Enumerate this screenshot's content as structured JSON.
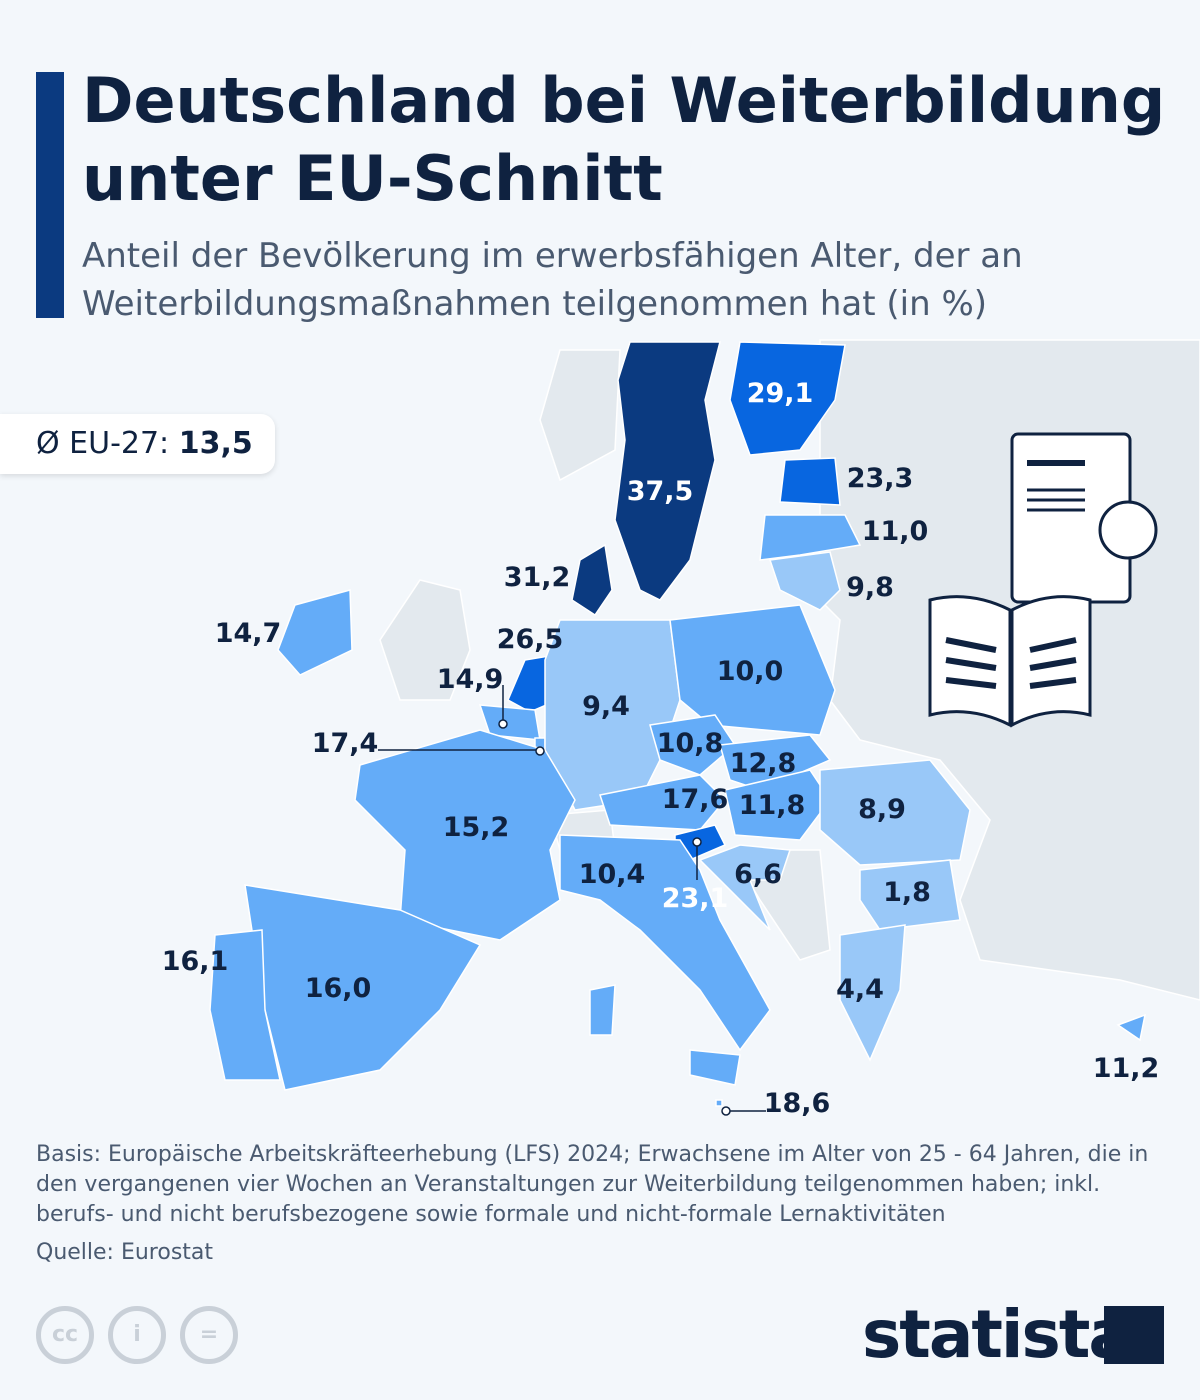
{
  "title": "Deutschland bei Weiterbildung unter EU-Schnitt",
  "subtitle": "Anteil der Bevölkerung im erwerbsfähigen Alter, der an Weiterbildungsmaßnahmen teilgenommen hat (in %)",
  "average": {
    "label": "Ø EU-27:",
    "value": "13,5"
  },
  "colors": {
    "darkest": "#0b3a80",
    "dark": "#0866e0",
    "mid": "#64acf8",
    "light": "#99c8f8",
    "nonEU": "#e3e9ee"
  },
  "countries": [
    {
      "name": "Schweden",
      "value": "37,5"
    },
    {
      "name": "Finnland",
      "value": "29,1"
    },
    {
      "name": "Estland",
      "value": "23,3"
    },
    {
      "name": "Lettland",
      "value": "11,0"
    },
    {
      "name": "Litauen",
      "value": "9,8"
    },
    {
      "name": "Dänemark",
      "value": "31,2"
    },
    {
      "name": "Irland",
      "value": "14,7"
    },
    {
      "name": "Niederlande",
      "value": "26,5"
    },
    {
      "name": "Belgien",
      "value": "14,9"
    },
    {
      "name": "Luxemburg",
      "value": "17,4"
    },
    {
      "name": "Deutschland",
      "value": "9,4"
    },
    {
      "name": "Polen",
      "value": "10,0"
    },
    {
      "name": "Tschechien",
      "value": "10,8"
    },
    {
      "name": "Slowakei",
      "value": "12,8"
    },
    {
      "name": "Österreich",
      "value": "17,6"
    },
    {
      "name": "Ungarn",
      "value": "11,8"
    },
    {
      "name": "Slowenien",
      "value": "23,1"
    },
    {
      "name": "Kroatien",
      "value": "6,6"
    },
    {
      "name": "Rumänien",
      "value": "8,9"
    },
    {
      "name": "Bulgarien",
      "value": "1,8"
    },
    {
      "name": "Griechenland",
      "value": "4,4"
    },
    {
      "name": "Zypern",
      "value": "11,2"
    },
    {
      "name": "Malta",
      "value": "18,6"
    },
    {
      "name": "Italien",
      "value": "10,4"
    },
    {
      "name": "Frankreich",
      "value": "15,2"
    },
    {
      "name": "Spanien",
      "value": "16,0"
    },
    {
      "name": "Portugal",
      "value": "16,1"
    }
  ],
  "notes": "Basis: Europäische Arbeitskräfteerhebung (LFS) 2024; Erwachsene im Alter von 25 - 64 Jahren, die in den vergangenen vier Wochen an Veranstaltungen zur Weiterbildung teilgenommen haben; inkl. berufs- und nicht berufsbezogene sowie formale und nicht-formale Lernaktivitäten",
  "source": "Quelle: Eurostat",
  "license_icons": [
    "cc-icon",
    "by-icon",
    "nd-icon"
  ],
  "logo": "statista"
}
